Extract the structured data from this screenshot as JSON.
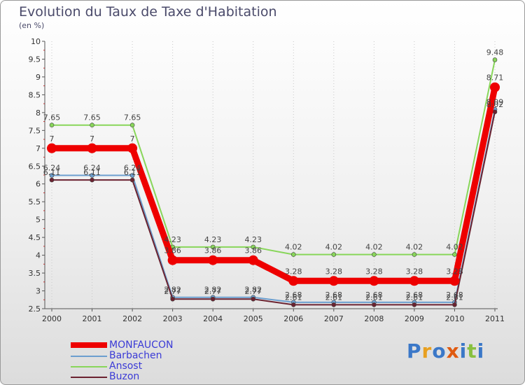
{
  "title": "Evolution du Taux de Taxe d'Habitation",
  "unit": "(en %)",
  "logo": "Proxiti",
  "chart_data": {
    "type": "line",
    "x": [
      "2000",
      "2001",
      "2002",
      "2003",
      "2004",
      "2005",
      "2006",
      "2007",
      "2008",
      "2009",
      "2010",
      "2011"
    ],
    "ylim": [
      2.5,
      10
    ],
    "yticks": [
      "2.5",
      "3",
      "3.5",
      "4",
      "4.5",
      "5",
      "5.5",
      "6",
      "6.5",
      "7",
      "7.5",
      "8",
      "8.5",
      "9",
      "9.5",
      "10"
    ],
    "grid": "dotted vertical",
    "legend": "bottom-left",
    "series": [
      {
        "name": "MONFAUCON",
        "color": "#ee0000",
        "width": 9,
        "values": [
          7,
          7,
          7,
          3.86,
          3.86,
          3.86,
          3.28,
          3.28,
          3.28,
          3.28,
          3.28,
          8.71
        ],
        "labels": [
          "7",
          "7",
          "7",
          "3.86",
          "3.86",
          "3.86",
          "3.28",
          "3.28",
          "3.28",
          "3.28",
          "3.28",
          "8.71"
        ]
      },
      {
        "name": "Barbachen",
        "color": "#6c9fcf",
        "width": 2,
        "values": [
          6.24,
          6.24,
          6.24,
          2.82,
          2.82,
          2.82,
          2.68,
          2.68,
          2.68,
          2.68,
          2.68,
          8.09
        ],
        "labels": [
          "6.24",
          "6.24",
          "6.24",
          "2.82",
          "2.82",
          "2.82",
          "2.68",
          "2.68",
          "2.68",
          "2.68",
          "2.68",
          "8.09"
        ]
      },
      {
        "name": "Ansost",
        "color": "#88d65a",
        "width": 2,
        "values": [
          7.65,
          7.65,
          7.65,
          4.23,
          4.23,
          4.23,
          4.02,
          4.02,
          4.02,
          4.02,
          4.02,
          9.48
        ],
        "labels": [
          "7.65",
          "7.65",
          "7.65",
          "4.23",
          "4.23",
          "4.23",
          "4.02",
          "4.02",
          "4.02",
          "4.02",
          "4.02",
          "9.48"
        ]
      },
      {
        "name": "Buzon",
        "color": "#6b2230",
        "width": 2,
        "values": [
          6.11,
          6.11,
          6.11,
          2.77,
          2.77,
          2.77,
          2.61,
          2.61,
          2.61,
          2.61,
          2.61,
          8.02
        ],
        "labels": [
          "6.11",
          "6.11",
          "6.11",
          "2.77",
          "2.77",
          "2.77",
          "2.61",
          "2.61",
          "2.61",
          "2.61",
          "2.61",
          "8.02"
        ]
      }
    ]
  }
}
